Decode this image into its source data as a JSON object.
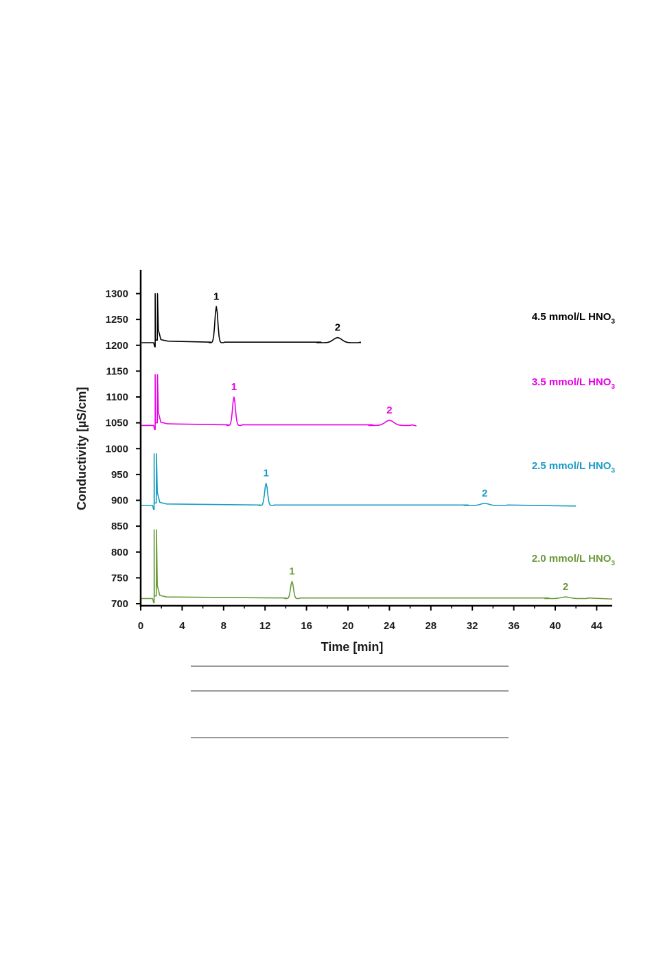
{
  "chart_data": {
    "type": "line",
    "xlabel": "Time [min]",
    "ylabel": "Conductivity [µS/cm]",
    "xlim": [
      0,
      45.5
    ],
    "ylim": [
      700,
      1330
    ],
    "x_ticks": [
      "0",
      "4",
      "8",
      "12",
      "16",
      "20",
      "24",
      "28",
      "32",
      "36",
      "40",
      "44"
    ],
    "y_ticks": [
      "700",
      "750",
      "800",
      "850",
      "900",
      "950",
      "1000",
      "1050",
      "1100",
      "1150",
      "1200",
      "1250",
      "1300"
    ],
    "series": [
      {
        "name": "4.5 mmol/L HNO",
        "subscript": "3",
        "color": "#000000",
        "baseline": 1205,
        "end_time": 21.2,
        "injection_time": 1.4,
        "injection_top": 1300,
        "peaks": [
          {
            "label": "1",
            "time": 7.3,
            "height": 1275
          },
          {
            "label": "2",
            "time": 19.0,
            "height": 1215
          }
        ]
      },
      {
        "name": "3.5 mmol/L HNO",
        "subscript": "3",
        "color": "#e600e6",
        "baseline": 1045,
        "end_time": 26.6,
        "injection_time": 1.4,
        "injection_top": 1143,
        "peaks": [
          {
            "label": "1",
            "time": 9.0,
            "height": 1100
          },
          {
            "label": "2",
            "time": 24.0,
            "height": 1055
          }
        ]
      },
      {
        "name": "2.5 mmol/L HNO",
        "subscript": "3",
        "color": "#1a9bc4",
        "baseline": 890,
        "end_time": 42.0,
        "injection_time": 1.3,
        "injection_top": 990,
        "peaks": [
          {
            "label": "1",
            "time": 12.1,
            "height": 933
          },
          {
            "label": "2",
            "time": 33.2,
            "height": 894
          }
        ]
      },
      {
        "name": "2.0 mmol/L HNO",
        "subscript": "3",
        "color": "#6a9a3a",
        "baseline": 710,
        "end_time": 45.5,
        "injection_time": 1.3,
        "injection_top": 843,
        "peaks": [
          {
            "label": "1",
            "time": 14.6,
            "height": 743
          },
          {
            "label": "2",
            "time": 41.0,
            "height": 713
          }
        ]
      }
    ]
  }
}
